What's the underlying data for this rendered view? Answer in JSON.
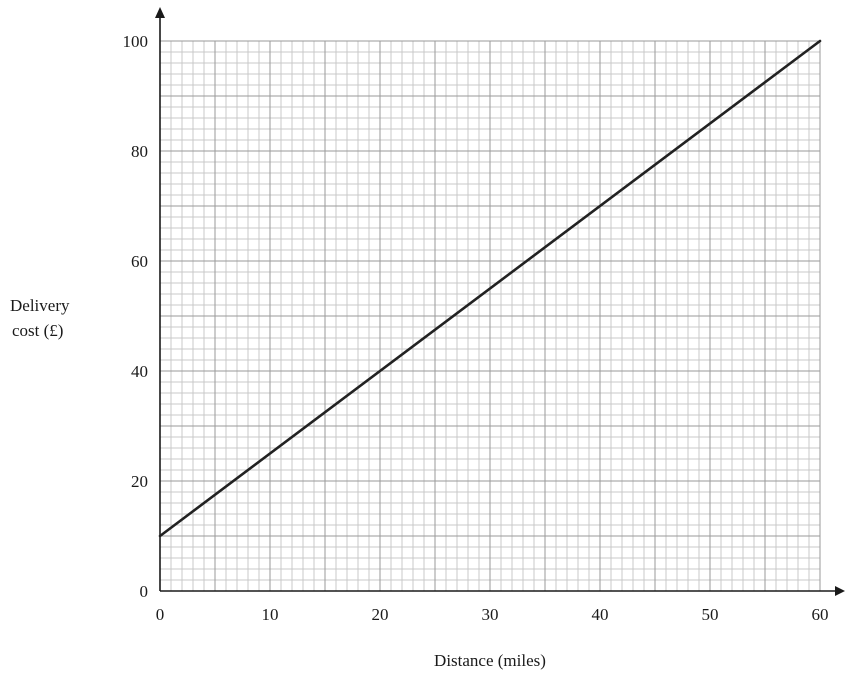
{
  "chart_data": {
    "type": "line",
    "title": "",
    "xlabel": "Distance (miles)",
    "ylabel_lines": [
      "Delivery",
      "cost (£)"
    ],
    "xlim": [
      0,
      60
    ],
    "ylim": [
      0,
      100
    ],
    "x_ticks": [
      "0",
      "10",
      "20",
      "30",
      "40",
      "50",
      "60"
    ],
    "y_ticks": [
      "0",
      "20",
      "40",
      "60",
      "80",
      "100"
    ],
    "grid": true,
    "grid_minor_x_step": 1,
    "grid_minor_y_step": 2,
    "grid_major_x_step": 5,
    "grid_major_y_step": 10,
    "series": [
      {
        "x": [
          0,
          60
        ],
        "y": [
          10,
          100
        ],
        "color": "#222222"
      }
    ]
  }
}
